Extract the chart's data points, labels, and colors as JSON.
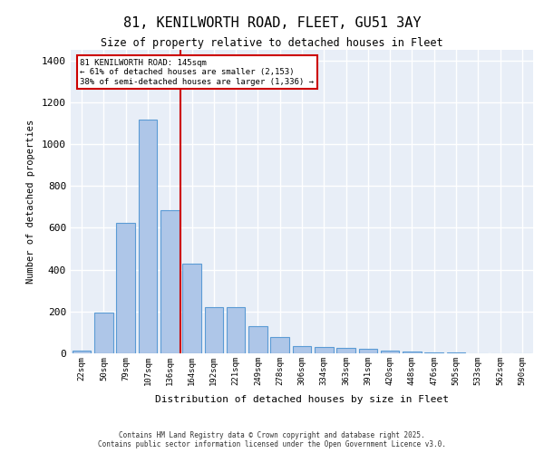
{
  "title1": "81, KENILWORTH ROAD, FLEET, GU51 3AY",
  "title2": "Size of property relative to detached houses in Fleet",
  "xlabel": "Distribution of detached houses by size in Fleet",
  "ylabel": "Number of detached properties",
  "categories": [
    "22sqm",
    "50sqm",
    "79sqm",
    "107sqm",
    "136sqm",
    "164sqm",
    "192sqm",
    "221sqm",
    "249sqm",
    "278sqm",
    "306sqm",
    "334sqm",
    "363sqm",
    "391sqm",
    "420sqm",
    "448sqm",
    "476sqm",
    "505sqm",
    "533sqm",
    "562sqm",
    "590sqm"
  ],
  "values": [
    15,
    195,
    625,
    1115,
    685,
    430,
    220,
    220,
    130,
    80,
    35,
    30,
    25,
    20,
    15,
    10,
    5,
    5,
    2,
    1,
    0
  ],
  "bar_color": "#aec6e8",
  "bar_edge_color": "#5b9bd5",
  "background_color": "#e8eef7",
  "grid_color": "#ffffff",
  "vline_x": 4.5,
  "vline_color": "#cc0000",
  "annotation_title": "81 KENILWORTH ROAD: 145sqm",
  "annotation_line1": "← 61% of detached houses are smaller (2,153)",
  "annotation_line2": "38% of semi-detached houses are larger (1,336) →",
  "annotation_box_color": "#cc0000",
  "footer1": "Contains HM Land Registry data © Crown copyright and database right 2025.",
  "footer2": "Contains public sector information licensed under the Open Government Licence v3.0.",
  "ylim": [
    0,
    1450
  ],
  "yticks": [
    0,
    200,
    400,
    600,
    800,
    1000,
    1200,
    1400
  ]
}
